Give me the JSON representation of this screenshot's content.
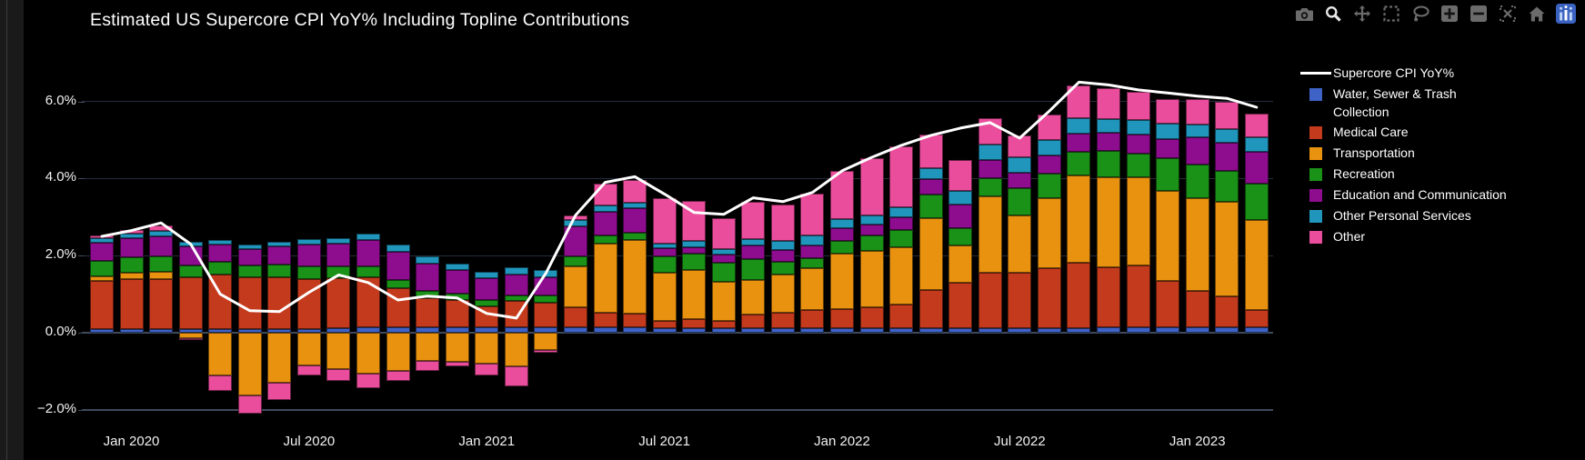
{
  "toolbar": {
    "icons": [
      "camera-icon",
      "zoom-icon",
      "pan-icon",
      "box-select-icon",
      "lasso-select-icon",
      "zoom-in-icon",
      "zoom-out-icon",
      "autoscale-icon",
      "home-icon",
      "plotly-logo-icon"
    ],
    "icon_color": "#6b6b6b",
    "active_icon_color": "#e8e8e8",
    "logo_color": "#3a62c0"
  },
  "legend": {
    "items": [
      {
        "label": "Supercore CPI YoY%",
        "swatch": "line",
        "color": "#ffffff"
      },
      {
        "label": "Water, Sewer & Trash\nCollection",
        "swatch": "box",
        "color": "#3f62c6"
      },
      {
        "label": "Medical Care",
        "swatch": "box",
        "color": "#c43a1c"
      },
      {
        "label": "Transportation",
        "swatch": "box",
        "color": "#e8920f"
      },
      {
        "label": "Recreation",
        "swatch": "box",
        "color": "#1a9117"
      },
      {
        "label": "Education and Communication",
        "swatch": "box",
        "color": "#8e0d8e"
      },
      {
        "label": "Other Personal Services",
        "swatch": "box",
        "color": "#2196bd"
      },
      {
        "label": "Other",
        "swatch": "box",
        "color": "#ea4d9c"
      }
    ]
  },
  "chart_data": {
    "type": "bar",
    "subtype": "stacked-bar-with-line-overlay",
    "title": "Estimated US Supercore CPI YoY% Including Topline Contributions",
    "xlabel": "",
    "ylabel": "",
    "background": "#000000",
    "grid": true,
    "grid_color": "#242e3c",
    "zero_line_color": "#3e4a5c",
    "axis_text_color": "#f2f2f2",
    "legend_position": "right",
    "ylim": [
      -2.7,
      7.0
    ],
    "yticks": [
      -2,
      0,
      2,
      4,
      6
    ],
    "ytick_labels": [
      "−2.0%",
      "0.0%",
      "2.0%",
      "4.0%",
      "6.0%"
    ],
    "xticks": [
      {
        "index": 1,
        "label": "Jan 2020"
      },
      {
        "index": 7,
        "label": "Jul 2020"
      },
      {
        "index": 13,
        "label": "Jan 2021"
      },
      {
        "index": 19,
        "label": "Jul 2021"
      },
      {
        "index": 25,
        "label": "Jan 2022"
      },
      {
        "index": 31,
        "label": "Jul 2022"
      },
      {
        "index": 37,
        "label": "Jan 2023"
      }
    ],
    "categories": [
      "Dec 2019",
      "Jan 2020",
      "Feb 2020",
      "Mar 2020",
      "Apr 2020",
      "May 2020",
      "Jun 2020",
      "Jul 2020",
      "Aug 2020",
      "Sep 2020",
      "Oct 2020",
      "Nov 2020",
      "Dec 2020",
      "Jan 2021",
      "Feb 2021",
      "Mar 2021",
      "Apr 2021",
      "May 2021",
      "Jun 2021",
      "Jul 2021",
      "Aug 2021",
      "Sep 2021",
      "Oct 2021",
      "Nov 2021",
      "Dec 2021",
      "Jan 2022",
      "Feb 2022",
      "Mar 2022",
      "Apr 2022",
      "May 2022",
      "Jun 2022",
      "Jul 2022",
      "Aug 2022",
      "Sep 2022",
      "Oct 2022",
      "Nov 2022",
      "Dec 2022",
      "Jan 2023",
      "Feb 2023",
      "Mar 2023"
    ],
    "series": [
      {
        "name": "Water, Sewer & Trash Collection",
        "slug": "water-sewer-trash-collection",
        "color": "#3f62c6",
        "values": [
          0.1,
          0.1,
          0.1,
          0.1,
          0.1,
          0.1,
          0.1,
          0.1,
          0.12,
          0.14,
          0.14,
          0.14,
          0.14,
          0.14,
          0.14,
          0.14,
          0.14,
          0.14,
          0.14,
          0.12,
          0.12,
          0.12,
          0.12,
          0.12,
          0.12,
          0.12,
          0.12,
          0.12,
          0.12,
          0.12,
          0.12,
          0.12,
          0.12,
          0.12,
          0.14,
          0.14,
          0.14,
          0.14,
          0.14,
          0.14
        ]
      },
      {
        "name": "Medical Care",
        "slug": "medical-care",
        "color": "#c43a1c",
        "values": [
          1.24,
          1.28,
          1.3,
          1.33,
          1.4,
          1.35,
          1.35,
          1.3,
          1.3,
          1.31,
          1.02,
          0.76,
          0.71,
          0.55,
          0.69,
          0.64,
          0.52,
          0.38,
          0.36,
          0.19,
          0.24,
          0.19,
          0.36,
          0.4,
          0.48,
          0.5,
          0.55,
          0.62,
          1.0,
          1.17,
          1.43,
          1.43,
          1.55,
          1.7,
          1.55,
          1.6,
          1.2,
          0.95,
          0.8,
          0.45
        ]
      },
      {
        "name": "Transportation",
        "slug": "transportation",
        "color": "#e8920f",
        "values": [
          0.12,
          0.17,
          0.19,
          -0.14,
          -1.12,
          -1.62,
          -1.3,
          -0.85,
          -0.95,
          -1.05,
          -1.0,
          -0.74,
          -0.76,
          -0.81,
          -0.88,
          -0.45,
          1.07,
          1.79,
          1.9,
          1.24,
          1.26,
          1.02,
          0.88,
          0.98,
          1.07,
          1.43,
          1.45,
          1.48,
          1.86,
          0.98,
          1.98,
          1.5,
          1.81,
          2.25,
          2.35,
          2.3,
          2.33,
          2.4,
          2.45,
          2.33
        ]
      },
      {
        "name": "Recreation",
        "slug": "recreation",
        "color": "#1a9117",
        "values": [
          0.4,
          0.4,
          0.4,
          0.31,
          0.33,
          0.3,
          0.31,
          0.33,
          0.3,
          0.28,
          0.21,
          0.19,
          0.17,
          0.17,
          0.14,
          0.19,
          0.24,
          0.21,
          0.19,
          0.43,
          0.43,
          0.48,
          0.55,
          0.33,
          0.26,
          0.33,
          0.4,
          0.45,
          0.6,
          0.45,
          0.48,
          0.71,
          0.64,
          0.62,
          0.67,
          0.6,
          0.85,
          0.88,
          0.8,
          0.95
        ]
      },
      {
        "name": "Education and Communication",
        "slug": "education-and-communication",
        "color": "#8e0d8e",
        "values": [
          0.48,
          0.5,
          0.52,
          0.5,
          0.45,
          0.42,
          0.48,
          0.55,
          0.6,
          0.67,
          0.74,
          0.71,
          0.6,
          0.55,
          0.55,
          0.48,
          0.79,
          0.62,
          0.64,
          0.21,
          0.17,
          0.21,
          0.36,
          0.31,
          0.33,
          0.33,
          0.28,
          0.33,
          0.4,
          0.6,
          0.48,
          0.4,
          0.48,
          0.48,
          0.48,
          0.5,
          0.5,
          0.7,
          0.75,
          0.83
        ]
      },
      {
        "name": "Other Personal Services",
        "slug": "other-personal-services",
        "color": "#2196bd",
        "values": [
          0.12,
          0.12,
          0.14,
          0.12,
          0.12,
          0.12,
          0.12,
          0.14,
          0.14,
          0.17,
          0.17,
          0.17,
          0.17,
          0.17,
          0.17,
          0.17,
          0.17,
          0.17,
          0.14,
          0.12,
          0.17,
          0.14,
          0.17,
          0.24,
          0.26,
          0.24,
          0.24,
          0.26,
          0.29,
          0.36,
          0.4,
          0.4,
          0.4,
          0.4,
          0.36,
          0.38,
          0.4,
          0.33,
          0.35,
          0.36
        ]
      },
      {
        "name": "Other",
        "slug": "other",
        "color": "#ea4d9c",
        "values": [
          0.07,
          0.1,
          0.14,
          -0.05,
          -0.4,
          -0.48,
          -0.45,
          -0.25,
          -0.3,
          -0.4,
          -0.24,
          -0.24,
          -0.12,
          -0.29,
          -0.52,
          -0.07,
          0.12,
          0.55,
          0.6,
          1.19,
          1.02,
          0.81,
          0.95,
          0.95,
          1.1,
          1.25,
          1.48,
          1.57,
          0.86,
          0.79,
          0.67,
          0.55,
          0.67,
          0.85,
          0.8,
          0.72,
          0.65,
          0.65,
          0.7,
          0.62
        ]
      }
    ],
    "line_series": {
      "name": "Supercore CPI YoY%",
      "color": "#ffffff",
      "values": [
        2.5,
        2.65,
        2.85,
        2.3,
        1.0,
        0.57,
        0.55,
        1.05,
        1.5,
        1.3,
        0.85,
        0.95,
        0.9,
        0.5,
        0.38,
        1.55,
        3.05,
        3.9,
        4.05,
        3.6,
        3.12,
        3.07,
        3.5,
        3.4,
        3.64,
        4.2,
        4.55,
        4.86,
        5.12,
        5.31,
        5.45,
        5.05,
        5.75,
        6.5,
        6.43,
        6.3,
        6.22,
        6.14,
        6.08,
        5.85
      ]
    }
  }
}
